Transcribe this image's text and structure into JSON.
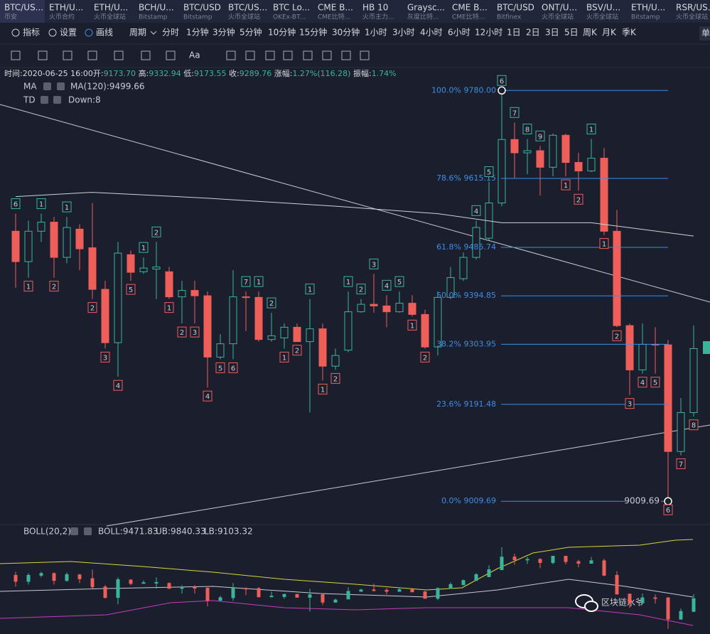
{
  "tabs": [
    {
      "name": "BTC/US...",
      "sub": "币安"
    },
    {
      "name": "ETH/U...",
      "sub": "火币合约"
    },
    {
      "name": "ETH/U...",
      "sub": "火币全球站"
    },
    {
      "name": "BCH/U...",
      "sub": "Bitstamp"
    },
    {
      "name": "BTC/USD",
      "sub": "Bitstamp"
    },
    {
      "name": "BTC/US...",
      "sub": "火币全球站"
    },
    {
      "name": "BTC Lo...",
      "sub": "OKEx-BT..."
    },
    {
      "name": "CME B...",
      "sub": "CME比特..."
    },
    {
      "name": "HB 10",
      "sub": "火币主力..."
    },
    {
      "name": "Graysc...",
      "sub": "灰度比特..."
    },
    {
      "name": "CME B...",
      "sub": "CME比特..."
    },
    {
      "name": "BTC/USD",
      "sub": "Bitfinex"
    },
    {
      "name": "ONT/U...",
      "sub": "火币全球站"
    },
    {
      "name": "BSV/U...",
      "sub": "火币全球站"
    },
    {
      "name": "ETH/U...",
      "sub": "Bitstamp"
    },
    {
      "name": "RSR/US...",
      "sub": "火币全球站"
    }
  ],
  "toolbar": {
    "left": [
      "指标",
      "设置",
      "画线"
    ],
    "period_label": "周期",
    "periods": [
      "分时",
      "1分钟",
      "3分钟",
      "5分钟",
      "10分钟",
      "15分钟",
      "30分钟",
      "1小时",
      "3小时",
      "4小时",
      "6小时",
      "12小时",
      "1日",
      "2日",
      "3日",
      "5日",
      "周K",
      "月K",
      "季K"
    ],
    "active": "4小时",
    "right": "单",
    "text_tool": "Aa"
  },
  "info": {
    "time": "时间:2020-06-25 16:00",
    "fields": [
      {
        "label": "开:",
        "value": "9173.70"
      },
      {
        "label": "高:",
        "value": "9332.94"
      },
      {
        "label": "低:",
        "value": "9173.55"
      },
      {
        "label": "收:",
        "value": "9289.76"
      },
      {
        "label": "涨幅:",
        "value": "1.27%(116.28)"
      },
      {
        "label": "振幅:",
        "value": "1.74%"
      }
    ]
  },
  "indicators": {
    "ma": "MA",
    "ma_value": "MA(120):9499.66",
    "td": "TD",
    "td_value": "Down:8",
    "boll": "BOLL(20,2)",
    "boll_value": "BOLL:9471.83",
    "ub": "UB:9840.33",
    "lb": "LB:9103.32"
  },
  "watermark": "区块链水爷",
  "chart_data": {
    "type": "candlestick",
    "ylim": [
      8966,
      9803
    ],
    "boll_ylim": [
      8963,
      9847
    ],
    "open": [
      9516,
      9459,
      9516,
      9533,
      9467,
      9520,
      9485,
      9407,
      9307,
      9472,
      9440,
      9445,
      9440,
      9393,
      9405,
      9395,
      9280,
      9305,
      9393,
      9392,
      9313,
      9316,
      9336,
      9309,
      9333,
      9263,
      9293,
      9365,
      9379,
      9376,
      9365,
      9381,
      9360,
      9299,
      9392,
      9427,
      9467,
      9503,
      9569,
      9688,
      9663,
      9667,
      9636,
      9696,
      9645,
      9629,
      9653,
      9516,
      9339,
      9256,
      9304,
      9303,
      9103,
      9176
    ],
    "high": [
      9549,
      9536,
      9549,
      9543,
      9543,
      9529,
      9569,
      9423,
      9496,
      9480,
      9467,
      9496,
      9449,
      9423,
      9423,
      9403,
      9323,
      9443,
      9403,
      9403,
      9363,
      9343,
      9343,
      9389,
      9343,
      9296,
      9403,
      9389,
      9436,
      9396,
      9403,
      9396,
      9369,
      9403,
      9449,
      9476,
      9536,
      9609,
      9780,
      9720,
      9689,
      9676,
      9699,
      9699,
      9663,
      9689,
      9672,
      9556,
      9343,
      9343,
      9336,
      9312,
      9203,
      9339
    ],
    "low": [
      9410,
      9429,
      9496,
      9429,
      9456,
      9443,
      9389,
      9296,
      9243,
      9423,
      9436,
      9389,
      9389,
      9343,
      9343,
      9223,
      9276,
      9276,
      9329,
      9309,
      9309,
      9296,
      9309,
      9176,
      9236,
      9256,
      9289,
      9363,
      9363,
      9336,
      9363,
      9356,
      9296,
      9283,
      9389,
      9423,
      9463,
      9499,
      9563,
      9616,
      9623,
      9583,
      9619,
      9619,
      9592,
      9627,
      9509,
      9336,
      9209,
      9249,
      9249,
      9009.69,
      9096,
      9169
    ],
    "close": [
      9459,
      9516,
      9533,
      9467,
      9523,
      9483,
      9407,
      9307,
      9475,
      9439,
      9447,
      9449,
      9393,
      9405,
      9395,
      9280,
      9305,
      9393,
      9392,
      9313,
      9320,
      9336,
      9309,
      9333,
      9263,
      9283,
      9365,
      9379,
      9376,
      9365,
      9381,
      9360,
      9299,
      9392,
      9429,
      9467,
      9523,
      9569,
      9688,
      9663,
      9667,
      9636,
      9696,
      9645,
      9629,
      9653,
      9516,
      9339,
      9256,
      9304,
      9303,
      9103,
      9176,
      9296
    ],
    "up_color": "#3bb59a",
    "down_color": "#ef5f5a",
    "ma": {
      "x": [
        0,
        6,
        15,
        25,
        33,
        38,
        45,
        53
      ],
      "values": [
        9581,
        9589,
        9578,
        9563,
        9549,
        9532,
        9532,
        9507
      ],
      "color": "#d0d2da"
    },
    "td_up": [
      {
        "i": 0,
        "n": 6
      },
      {
        "i": 2,
        "n": 1
      },
      {
        "i": 4,
        "n": 1
      },
      {
        "i": 10,
        "n": 1
      },
      {
        "i": 11,
        "n": 2
      },
      {
        "i": 18,
        "n": 7
      },
      {
        "i": 19,
        "n": 1
      },
      {
        "i": 20,
        "n": 2
      },
      {
        "i": 23,
        "n": 1
      },
      {
        "i": 26,
        "n": 1
      },
      {
        "i": 27,
        "n": 2
      },
      {
        "i": 28,
        "n": 3
      },
      {
        "i": 29,
        "n": 4
      },
      {
        "i": 30,
        "n": 5
      },
      {
        "i": 36,
        "n": 4
      },
      {
        "i": 37,
        "n": 5
      },
      {
        "i": 38,
        "n": 6
      },
      {
        "i": 39,
        "n": 7
      },
      {
        "i": 40,
        "n": 8
      },
      {
        "i": 41,
        "n": 9
      },
      {
        "i": 45,
        "n": 1
      }
    ],
    "td_down": [
      {
        "i": 1,
        "n": 1
      },
      {
        "i": 3,
        "n": 2
      },
      {
        "i": 6,
        "n": 2
      },
      {
        "i": 7,
        "n": 3
      },
      {
        "i": 8,
        "n": 4
      },
      {
        "i": 9,
        "n": 5
      },
      {
        "i": 12,
        "n": 1
      },
      {
        "i": 13,
        "n": 2
      },
      {
        "i": 14,
        "n": 3
      },
      {
        "i": 15,
        "n": 4
      },
      {
        "i": 16,
        "n": 5
      },
      {
        "i": 17,
        "n": 6
      },
      {
        "i": 21,
        "n": 1
      },
      {
        "i": 22,
        "n": 2
      },
      {
        "i": 24,
        "n": 1
      },
      {
        "i": 25,
        "n": 2
      },
      {
        "i": 31,
        "n": 1
      },
      {
        "i": 32,
        "n": 2
      },
      {
        "i": 43,
        "n": 1
      },
      {
        "i": 44,
        "n": 2
      },
      {
        "i": 46,
        "n": 1
      },
      {
        "i": 47,
        "n": 2
      },
      {
        "i": 48,
        "n": 3
      },
      {
        "i": 49,
        "n": 4
      },
      {
        "i": 50,
        "n": 5
      },
      {
        "i": 51,
        "n": 6
      },
      {
        "i": 52,
        "n": 7
      },
      {
        "i": 53,
        "n": 8
      }
    ],
    "fib": [
      {
        "value": 9780,
        "label": "100.0% 9780.00"
      },
      {
        "value": 9615.15,
        "label": "78.6% 9615.15"
      },
      {
        "value": 9485.74,
        "label": "61.8% 9485.74"
      },
      {
        "value": 9394.85,
        "label": "50.0% 9394.85"
      },
      {
        "value": 9303.95,
        "label": "38.2% 9303.95"
      },
      {
        "value": 9191.48,
        "label": "23.6% 9191.48"
      },
      {
        "value": 9009.69,
        "label": "0.0% 9009.69"
      }
    ],
    "fib_color": "#3d8ee6",
    "low_label": 9009.69
  }
}
